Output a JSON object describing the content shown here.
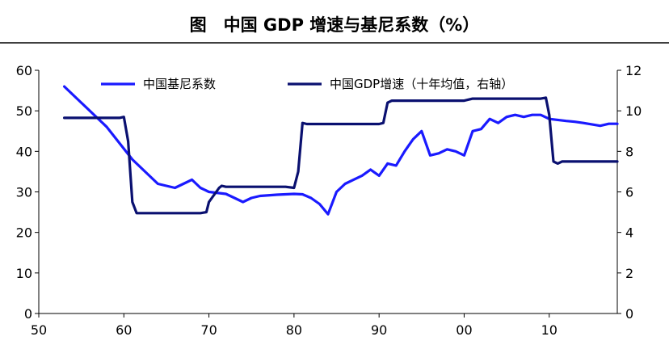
{
  "chart_data": {
    "type": "line",
    "title": "图　中国 GDP 增速与基尼系数（%）",
    "x_ticks": [
      "50",
      "60",
      "70",
      "80",
      "90",
      "00",
      "10"
    ],
    "y_left_ticks": [
      "0",
      "10",
      "20",
      "30",
      "40",
      "50",
      "60"
    ],
    "y_right_ticks": [
      "0",
      "2",
      "4",
      "6",
      "8",
      "10",
      "12"
    ],
    "x_range": [
      1950,
      2018
    ],
    "y_left_range": [
      0,
      60
    ],
    "y_right_range": [
      0,
      12
    ],
    "legend_position": "top",
    "series": [
      {
        "name": "中国基尼系数",
        "axis": "left",
        "color": "#1a1aff",
        "x": [
          1953,
          1955,
          1958,
          1961,
          1964,
          1966,
          1967,
          1968,
          1969,
          1970,
          1972,
          1973,
          1974,
          1975,
          1976,
          1978,
          1980,
          1981,
          1982,
          1983,
          1984,
          1985,
          1986,
          1987,
          1988,
          1989,
          1990,
          1991,
          1992,
          1993,
          1994,
          1995,
          1996,
          1997,
          1998,
          1999,
          2000,
          2001,
          2002,
          2003,
          2004,
          2005,
          2006,
          2007,
          2008,
          2009,
          2010,
          2012,
          2013,
          2014,
          2016,
          2017,
          2018
        ],
        "y": [
          56,
          52,
          46,
          38,
          32,
          31,
          32,
          33,
          31,
          30,
          29.5,
          28.5,
          27.5,
          28.5,
          29,
          29.3,
          29.5,
          29.4,
          28.5,
          27,
          24.5,
          30,
          32,
          33,
          34,
          35.5,
          34,
          37,
          36.5,
          40,
          43,
          45,
          39,
          39.5,
          40.5,
          40,
          39,
          45,
          45.5,
          48,
          47,
          48.5,
          49,
          48.5,
          49,
          49,
          48,
          47.5,
          47.3,
          47,
          46.3,
          46.8,
          46.8
        ]
      },
      {
        "name": "中国GDP增速（十年均值，右轴）",
        "axis": "right",
        "color": "#0a1070",
        "x": [
          1953,
          1959.5,
          1960,
          1960.5,
          1961,
          1961.5,
          1969,
          1969.7,
          1970,
          1971.2,
          1971.5,
          1972,
          1979,
          1980,
          1980.5,
          1981,
          1981.5,
          1990,
          1990.5,
          1991,
          1991.5,
          1999,
          2000,
          2001,
          2009,
          2009.6,
          2010,
          2010.5,
          2011,
          2011.5,
          2018
        ],
        "y": [
          9.65,
          9.65,
          9.7,
          8.5,
          5.5,
          4.95,
          4.95,
          5.0,
          5.5,
          6.2,
          6.3,
          6.25,
          6.25,
          6.2,
          7.0,
          9.4,
          9.35,
          9.35,
          9.4,
          10.4,
          10.5,
          10.5,
          10.5,
          10.6,
          10.6,
          10.65,
          9.8,
          7.5,
          7.4,
          7.5,
          7.5
        ]
      }
    ]
  }
}
